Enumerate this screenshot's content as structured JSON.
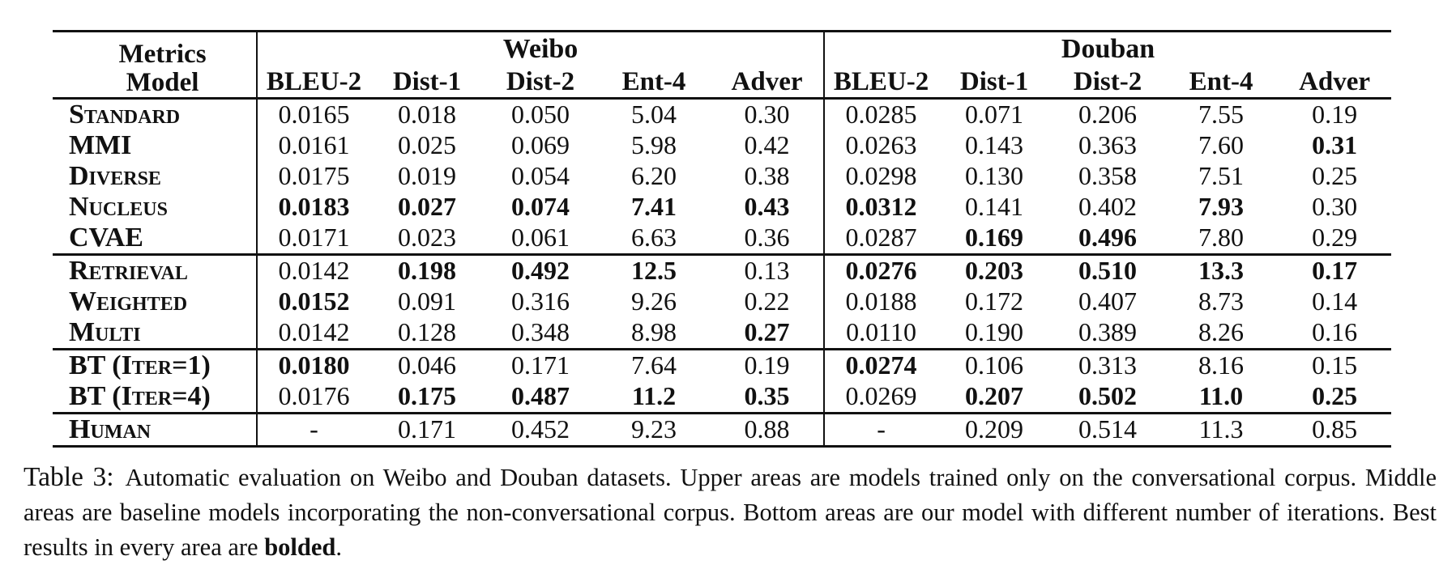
{
  "page": {
    "background": "#ffffff",
    "text_color": "#111111",
    "rule_color": "#111111"
  },
  "table": {
    "header": {
      "corner_line1": "Metrics",
      "corner_line2": "Model",
      "groups": [
        "Weibo",
        "Douban"
      ],
      "metrics": [
        "BLEU-2",
        "Dist-1",
        "Dist-2",
        "Ent-4",
        "Adver"
      ]
    },
    "sections": [
      {
        "name": "models-trained-only-on-conversational-corpus",
        "rows": [
          {
            "model": "Standard",
            "cells": [
              {
                "t": "0.0165",
                "b": 0
              },
              {
                "t": "0.018",
                "b": 0
              },
              {
                "t": "0.050",
                "b": 0
              },
              {
                "t": "5.04",
                "b": 0
              },
              {
                "t": "0.30",
                "b": 0
              },
              {
                "t": "0.0285",
                "b": 0
              },
              {
                "t": "0.071",
                "b": 0
              },
              {
                "t": "0.206",
                "b": 0
              },
              {
                "t": "7.55",
                "b": 0
              },
              {
                "t": "0.19",
                "b": 0
              }
            ]
          },
          {
            "model": "MMI",
            "cells": [
              {
                "t": "0.0161",
                "b": 0
              },
              {
                "t": "0.025",
                "b": 0
              },
              {
                "t": "0.069",
                "b": 0
              },
              {
                "t": "5.98",
                "b": 0
              },
              {
                "t": "0.42",
                "b": 0
              },
              {
                "t": "0.0263",
                "b": 0
              },
              {
                "t": "0.143",
                "b": 0
              },
              {
                "t": "0.363",
                "b": 0
              },
              {
                "t": "7.60",
                "b": 0
              },
              {
                "t": "0.31",
                "b": 1
              }
            ]
          },
          {
            "model": "Diverse",
            "cells": [
              {
                "t": "0.0175",
                "b": 0
              },
              {
                "t": "0.019",
                "b": 0
              },
              {
                "t": "0.054",
                "b": 0
              },
              {
                "t": "6.20",
                "b": 0
              },
              {
                "t": "0.38",
                "b": 0
              },
              {
                "t": "0.0298",
                "b": 0
              },
              {
                "t": "0.130",
                "b": 0
              },
              {
                "t": "0.358",
                "b": 0
              },
              {
                "t": "7.51",
                "b": 0
              },
              {
                "t": "0.25",
                "b": 0
              }
            ]
          },
          {
            "model": "Nucleus",
            "cells": [
              {
                "t": "0.0183",
                "b": 1
              },
              {
                "t": "0.027",
                "b": 1
              },
              {
                "t": "0.074",
                "b": 1
              },
              {
                "t": "7.41",
                "b": 1
              },
              {
                "t": "0.43",
                "b": 1
              },
              {
                "t": "0.0312",
                "b": 1
              },
              {
                "t": "0.141",
                "b": 0
              },
              {
                "t": "0.402",
                "b": 0
              },
              {
                "t": "7.93",
                "b": 1
              },
              {
                "t": "0.30",
                "b": 0
              }
            ]
          },
          {
            "model": "CVAE",
            "cells": [
              {
                "t": "0.0171",
                "b": 0
              },
              {
                "t": "0.023",
                "b": 0
              },
              {
                "t": "0.061",
                "b": 0
              },
              {
                "t": "6.63",
                "b": 0
              },
              {
                "t": "0.36",
                "b": 0
              },
              {
                "t": "0.0287",
                "b": 0
              },
              {
                "t": "0.169",
                "b": 1
              },
              {
                "t": "0.496",
                "b": 1
              },
              {
                "t": "7.80",
                "b": 0
              },
              {
                "t": "0.29",
                "b": 0
              }
            ]
          }
        ]
      },
      {
        "name": "baselines-with-non-conversational-corpus",
        "rows": [
          {
            "model": "Retrieval",
            "cells": [
              {
                "t": "0.0142",
                "b": 0
              },
              {
                "t": "0.198",
                "b": 1
              },
              {
                "t": "0.492",
                "b": 1
              },
              {
                "t": "12.5",
                "b": 1
              },
              {
                "t": "0.13",
                "b": 0
              },
              {
                "t": "0.0276",
                "b": 1
              },
              {
                "t": "0.203",
                "b": 1
              },
              {
                "t": "0.510",
                "b": 1
              },
              {
                "t": "13.3",
                "b": 1
              },
              {
                "t": "0.17",
                "b": 1
              }
            ]
          },
          {
            "model": "Weighted",
            "cells": [
              {
                "t": "0.0152",
                "b": 1
              },
              {
                "t": "0.091",
                "b": 0
              },
              {
                "t": "0.316",
                "b": 0
              },
              {
                "t": "9.26",
                "b": 0
              },
              {
                "t": "0.22",
                "b": 0
              },
              {
                "t": "0.0188",
                "b": 0
              },
              {
                "t": "0.172",
                "b": 0
              },
              {
                "t": "0.407",
                "b": 0
              },
              {
                "t": "8.73",
                "b": 0
              },
              {
                "t": "0.14",
                "b": 0
              }
            ]
          },
          {
            "model": "Multi",
            "cells": [
              {
                "t": "0.0142",
                "b": 0
              },
              {
                "t": "0.128",
                "b": 0
              },
              {
                "t": "0.348",
                "b": 0
              },
              {
                "t": "8.98",
                "b": 0
              },
              {
                "t": "0.27",
                "b": 1
              },
              {
                "t": "0.0110",
                "b": 0
              },
              {
                "t": "0.190",
                "b": 0
              },
              {
                "t": "0.389",
                "b": 0
              },
              {
                "t": "8.26",
                "b": 0
              },
              {
                "t": "0.16",
                "b": 0
              }
            ]
          }
        ]
      },
      {
        "name": "our-model-iterations",
        "rows": [
          {
            "model": "BT (Iter=1)",
            "cells": [
              {
                "t": "0.0180",
                "b": 1
              },
              {
                "t": "0.046",
                "b": 0
              },
              {
                "t": "0.171",
                "b": 0
              },
              {
                "t": "7.64",
                "b": 0
              },
              {
                "t": "0.19",
                "b": 0
              },
              {
                "t": "0.0274",
                "b": 1
              },
              {
                "t": "0.106",
                "b": 0
              },
              {
                "t": "0.313",
                "b": 0
              },
              {
                "t": "8.16",
                "b": 0
              },
              {
                "t": "0.15",
                "b": 0
              }
            ]
          },
          {
            "model": "BT (Iter=4)",
            "cells": [
              {
                "t": "0.0176",
                "b": 0
              },
              {
                "t": "0.175",
                "b": 1
              },
              {
                "t": "0.487",
                "b": 1
              },
              {
                "t": "11.2",
                "b": 1
              },
              {
                "t": "0.35",
                "b": 1
              },
              {
                "t": "0.0269",
                "b": 0
              },
              {
                "t": "0.207",
                "b": 1
              },
              {
                "t": "0.502",
                "b": 1
              },
              {
                "t": "11.0",
                "b": 1
              },
              {
                "t": "0.25",
                "b": 1
              }
            ]
          }
        ]
      },
      {
        "name": "human",
        "rows": [
          {
            "model": "Human",
            "cells": [
              {
                "t": "-",
                "b": 0
              },
              {
                "t": "0.171",
                "b": 0
              },
              {
                "t": "0.452",
                "b": 0
              },
              {
                "t": "9.23",
                "b": 0
              },
              {
                "t": "0.88",
                "b": 0
              },
              {
                "t": "-",
                "b": 0
              },
              {
                "t": "0.209",
                "b": 0
              },
              {
                "t": "0.514",
                "b": 0
              },
              {
                "t": "11.3",
                "b": 0
              },
              {
                "t": "0.85",
                "b": 0
              }
            ]
          }
        ]
      }
    ]
  },
  "caption": {
    "label": "Table 3:",
    "body": "Automatic evaluation on Weibo and Douban datasets. Upper areas are models trained only on the conversational corpus. Middle areas are baseline models incorporating the non-conversational corpus. Bottom areas are our model with different number of iterations. Best results in every area are ",
    "bold_word": "bolded",
    "suffix": "."
  }
}
